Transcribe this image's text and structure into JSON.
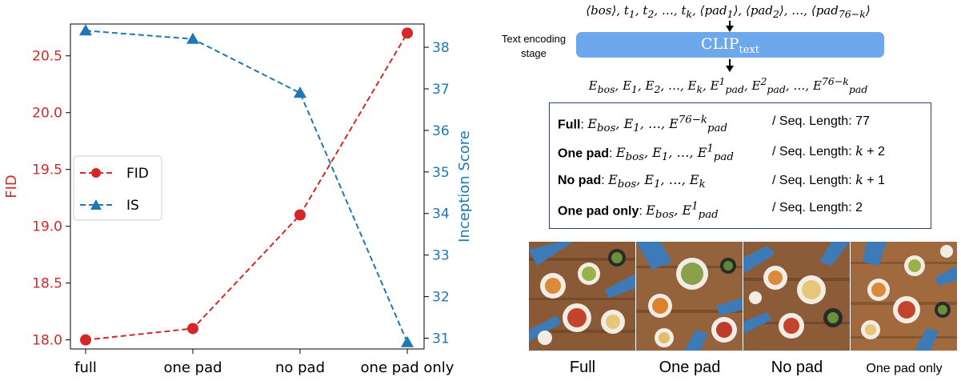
{
  "chart_data": {
    "type": "line",
    "categories": [
      "full",
      "one pad",
      "no pad",
      "one pad only"
    ],
    "series": [
      {
        "name": "FID",
        "axis": "left",
        "color": "#d62728",
        "marker": "circle",
        "linestyle": "dashed",
        "values": [
          18.0,
          18.1,
          19.1,
          20.7
        ]
      },
      {
        "name": "IS",
        "axis": "right",
        "color": "#1f77b4",
        "marker": "triangle",
        "linestyle": "dashed",
        "values": [
          38.4,
          38.2,
          36.9,
          30.9
        ]
      }
    ],
    "ylabel_left": "FID",
    "ylabel_right": "Inception Score",
    "ylim_left": [
      17.92,
      20.78
    ],
    "ylim_right": [
      30.74,
      38.56
    ],
    "yticks_left": [
      "18.0",
      "18.5",
      "19.0",
      "19.5",
      "20.0",
      "20.5"
    ],
    "yticks_right": [
      "31",
      "32",
      "33",
      "34",
      "35",
      "36",
      "37",
      "38"
    ],
    "legend": {
      "placement": "center-left",
      "entries": [
        "FID",
        "IS"
      ]
    },
    "grid": false
  },
  "diagram": {
    "stage_label": "Text encoding stage",
    "encoder_label": "CLIP",
    "encoder_sub": "text"
  },
  "variants": [
    {
      "name": "Full",
      "seq_label": "/ Seq. Length: 77"
    },
    {
      "name": "One pad",
      "seq_label": "/ Seq. Length: "
    },
    {
      "name": "No pad",
      "seq_label": "/ Seq. Length: "
    },
    {
      "name": "One pad only",
      "seq_label": "/ Seq. Length: 2"
    }
  ],
  "samples": {
    "captions": [
      "Full",
      "One pad",
      "No pad",
      "One pad only"
    ]
  },
  "colors": {
    "fid": "#d62728",
    "is": "#1f77b4",
    "clip_box": "#6ea8ec",
    "table_border": "#2e3f7a"
  }
}
